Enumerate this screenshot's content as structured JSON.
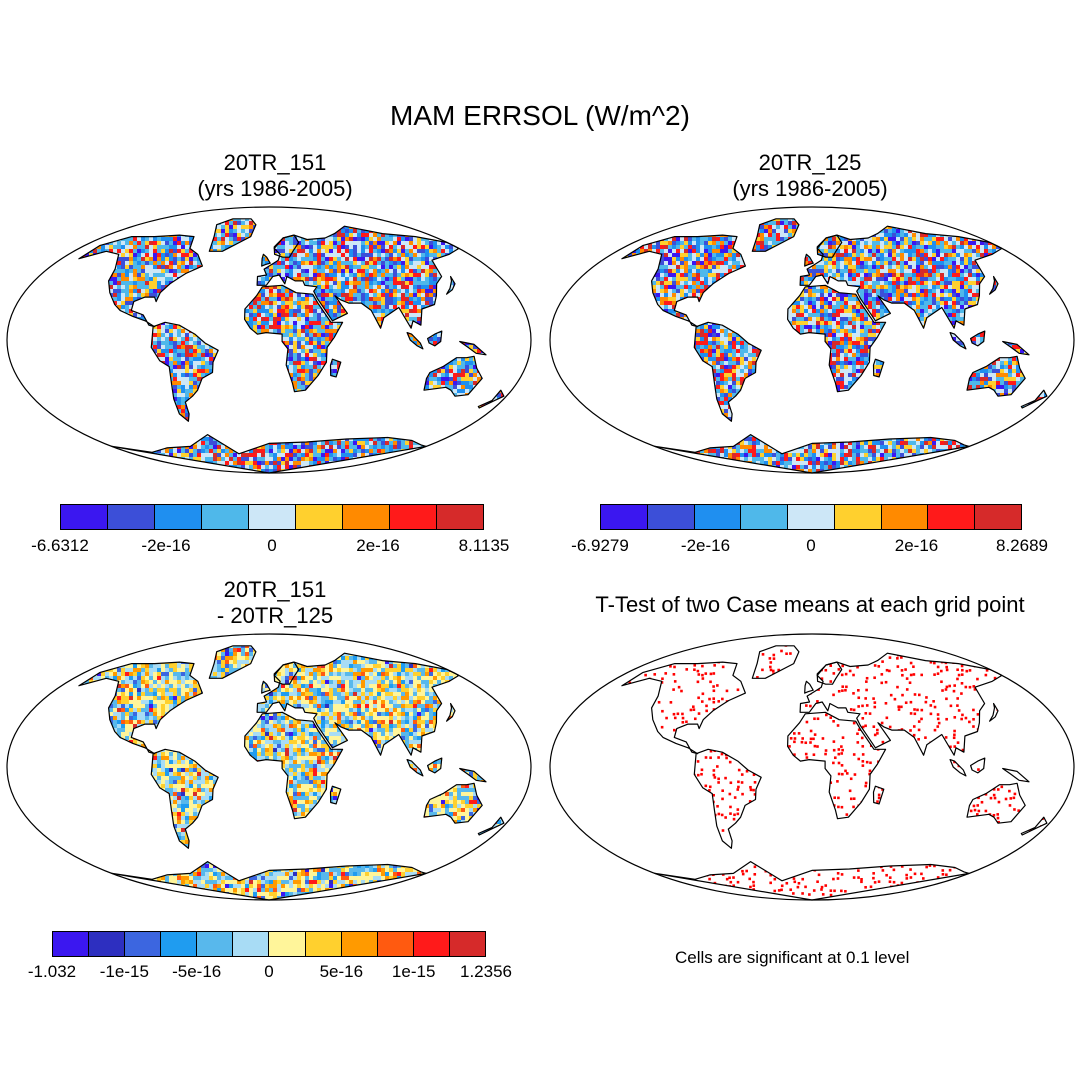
{
  "figure": {
    "title": "MAM ERRSOL (W/m^2)",
    "footnote": "Cells are significant at 0.1 level"
  },
  "panels": [
    {
      "name": "case-1",
      "title_line1": "20TR_151",
      "title_line2": "(yrs 1986-2005)",
      "colorbar": {
        "colors": [
          "#3b17f0",
          "#3c4fd8",
          "#1f8ff0",
          "#4fb8ea",
          "#cde7f7",
          "#ffd02e",
          "#ff8a00",
          "#ff1a1a",
          "#d62a2a"
        ],
        "ticks": [
          "-6.6312",
          "-2e-16",
          "0",
          "2e-16",
          "8.1135"
        ]
      }
    },
    {
      "name": "case-2",
      "title_line1": "20TR_125",
      "title_line2": "(yrs 1986-2005)",
      "colorbar": {
        "colors": [
          "#3b17f0",
          "#3c4fd8",
          "#1f8ff0",
          "#4fb8ea",
          "#cde7f7",
          "#ffd02e",
          "#ff8a00",
          "#ff1a1a",
          "#d62a2a"
        ],
        "ticks": [
          "-6.9279",
          "-2e-16",
          "0",
          "2e-16",
          "8.2689"
        ]
      }
    },
    {
      "name": "difference",
      "title_line1": "20TR_151",
      "title_line2": "- 20TR_125",
      "colorbar": {
        "colors": [
          "#3b17f0",
          "#2d2fc0",
          "#3c66e0",
          "#1f9cf0",
          "#58b8ec",
          "#a8dcf5",
          "#fff59a",
          "#ffd02e",
          "#ff9a00",
          "#ff5a10",
          "#ff1a1a",
          "#d62a2a"
        ],
        "ticks": [
          "-1.032",
          "-1e-15",
          "-5e-16",
          "0",
          "5e-16",
          "1e-15",
          "1.2356"
        ]
      }
    },
    {
      "name": "t-test",
      "title_line1": "T-Test of two Case means at each grid point",
      "title_line2": ""
    }
  ],
  "style": {
    "ttest_dot_color": "#ff0000",
    "coast_color": "#000000"
  }
}
